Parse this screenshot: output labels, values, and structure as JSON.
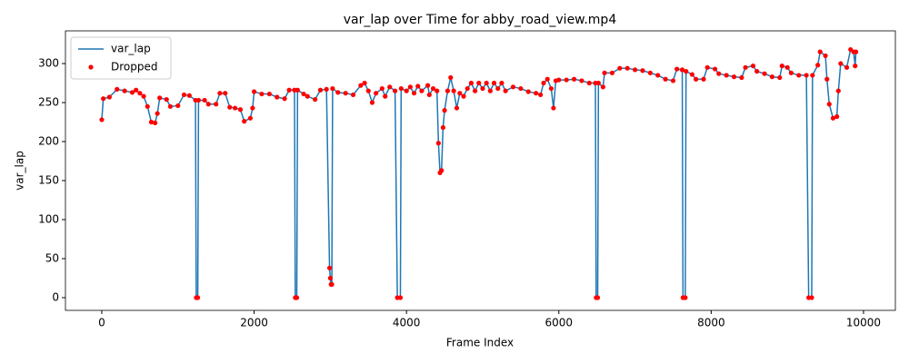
{
  "chart_data": {
    "type": "line",
    "title": "var_lap over Time for abby_road_view.mp4",
    "x_label": "Frame Index",
    "y_label": "var_lap",
    "xlim": [
      -477,
      10418
    ],
    "ylim": [
      -16.3,
      341.9
    ],
    "xticks": [
      0,
      2000,
      4000,
      6000,
      8000,
      10000
    ],
    "yticks": [
      0,
      50,
      100,
      150,
      200,
      250,
      300
    ],
    "grid": false,
    "legend": "upper left",
    "x": [
      0,
      20,
      100,
      200,
      300,
      400,
      450,
      500,
      550,
      600,
      650,
      700,
      730,
      760,
      850,
      900,
      1000,
      1080,
      1150,
      1230,
      1240,
      1260,
      1270,
      1350,
      1400,
      1500,
      1550,
      1620,
      1680,
      1750,
      1820,
      1870,
      1950,
      1980,
      2000,
      2100,
      2200,
      2300,
      2400,
      2460,
      2530,
      2540,
      2560,
      2570,
      2650,
      2700,
      2800,
      2870,
      2950,
      2990,
      3000,
      3010,
      3020,
      3030,
      3100,
      3200,
      3300,
      3400,
      3450,
      3500,
      3550,
      3600,
      3680,
      3720,
      3780,
      3850,
      3880,
      3920,
      3930,
      4000,
      4050,
      4100,
      4150,
      4200,
      4280,
      4300,
      4350,
      4400,
      4420,
      4440,
      4460,
      4480,
      4500,
      4540,
      4580,
      4620,
      4660,
      4700,
      4750,
      4800,
      4850,
      4900,
      4950,
      5000,
      5050,
      5100,
      5150,
      5200,
      5250,
      5300,
      5400,
      5500,
      5600,
      5700,
      5760,
      5800,
      5850,
      5900,
      5930,
      5960,
      6000,
      6100,
      6200,
      6300,
      6400,
      6480,
      6490,
      6510,
      6520,
      6580,
      6600,
      6700,
      6800,
      6900,
      7000,
      7100,
      7200,
      7300,
      7400,
      7500,
      7550,
      7620,
      7630,
      7660,
      7670,
      7750,
      7800,
      7900,
      7950,
      8050,
      8100,
      8200,
      8300,
      8400,
      8450,
      8550,
      8600,
      8700,
      8800,
      8900,
      8930,
      9000,
      9050,
      9150,
      9250,
      9280,
      9320,
      9330,
      9400,
      9430,
      9500,
      9520,
      9550,
      9600,
      9650,
      9670,
      9700,
      9780,
      9830,
      9870,
      9890,
      9900
    ],
    "series": [
      {
        "name": "var_lap",
        "type": "line",
        "color": "#1f77b4",
        "values": [
          228,
          255,
          257,
          267,
          265,
          263,
          266,
          262,
          258,
          245,
          225,
          224,
          236,
          256,
          254,
          245,
          246,
          260,
          259,
          253,
          0,
          0,
          253,
          253,
          248,
          248,
          262,
          262,
          244,
          243,
          241,
          226,
          230,
          243,
          264,
          261,
          261,
          257,
          255,
          266,
          266,
          0,
          0,
          266,
          261,
          258,
          254,
          266,
          267,
          38,
          25,
          17,
          17,
          268,
          263,
          262,
          260,
          272,
          275,
          265,
          250,
          262,
          268,
          258,
          270,
          265,
          0,
          0,
          268,
          265,
          270,
          262,
          271,
          265,
          272,
          260,
          268,
          265,
          198,
          160,
          163,
          218,
          240,
          265,
          282,
          265,
          243,
          262,
          258,
          268,
          275,
          265,
          275,
          268,
          275,
          265,
          275,
          268,
          275,
          265,
          270,
          268,
          264,
          262,
          260,
          275,
          280,
          268,
          243,
          278,
          279,
          279,
          280,
          278,
          275,
          275,
          0,
          0,
          275,
          270,
          288,
          288,
          294,
          294,
          292,
          291,
          288,
          285,
          280,
          278,
          293,
          292,
          0,
          0,
          290,
          286,
          280,
          280,
          295,
          293,
          287,
          285,
          283,
          282,
          295,
          297,
          290,
          287,
          283,
          282,
          297,
          295,
          288,
          285,
          285,
          0,
          0,
          285,
          298,
          315,
          310,
          280,
          248,
          230,
          232,
          265,
          300,
          295,
          318,
          315,
          297,
          315
        ]
      },
      {
        "name": "Dropped",
        "type": "scatter",
        "color": "#ff0000",
        "values": [
          228,
          255,
          257,
          267,
          265,
          263,
          266,
          262,
          258,
          245,
          225,
          224,
          236,
          256,
          254,
          245,
          246,
          260,
          259,
          253,
          0,
          0,
          253,
          253,
          248,
          248,
          262,
          262,
          244,
          243,
          241,
          226,
          230,
          243,
          264,
          261,
          261,
          257,
          255,
          266,
          266,
          0,
          0,
          266,
          261,
          258,
          254,
          266,
          267,
          38,
          25,
          17,
          17,
          268,
          263,
          262,
          260,
          272,
          275,
          265,
          250,
          262,
          268,
          258,
          270,
          265,
          0,
          0,
          268,
          265,
          270,
          262,
          271,
          265,
          272,
          260,
          268,
          265,
          198,
          160,
          163,
          218,
          240,
          265,
          282,
          265,
          243,
          262,
          258,
          268,
          275,
          265,
          275,
          268,
          275,
          265,
          275,
          268,
          275,
          265,
          270,
          268,
          264,
          262,
          260,
          275,
          280,
          268,
          243,
          278,
          279,
          279,
          280,
          278,
          275,
          275,
          0,
          0,
          275,
          270,
          288,
          288,
          294,
          294,
          292,
          291,
          288,
          285,
          280,
          278,
          293,
          292,
          0,
          0,
          290,
          286,
          280,
          280,
          295,
          293,
          287,
          285,
          283,
          282,
          295,
          297,
          290,
          287,
          283,
          282,
          297,
          295,
          288,
          285,
          285,
          0,
          0,
          285,
          298,
          315,
          310,
          280,
          248,
          230,
          232,
          265,
          300,
          295,
          318,
          315,
          297,
          315
        ]
      }
    ]
  }
}
